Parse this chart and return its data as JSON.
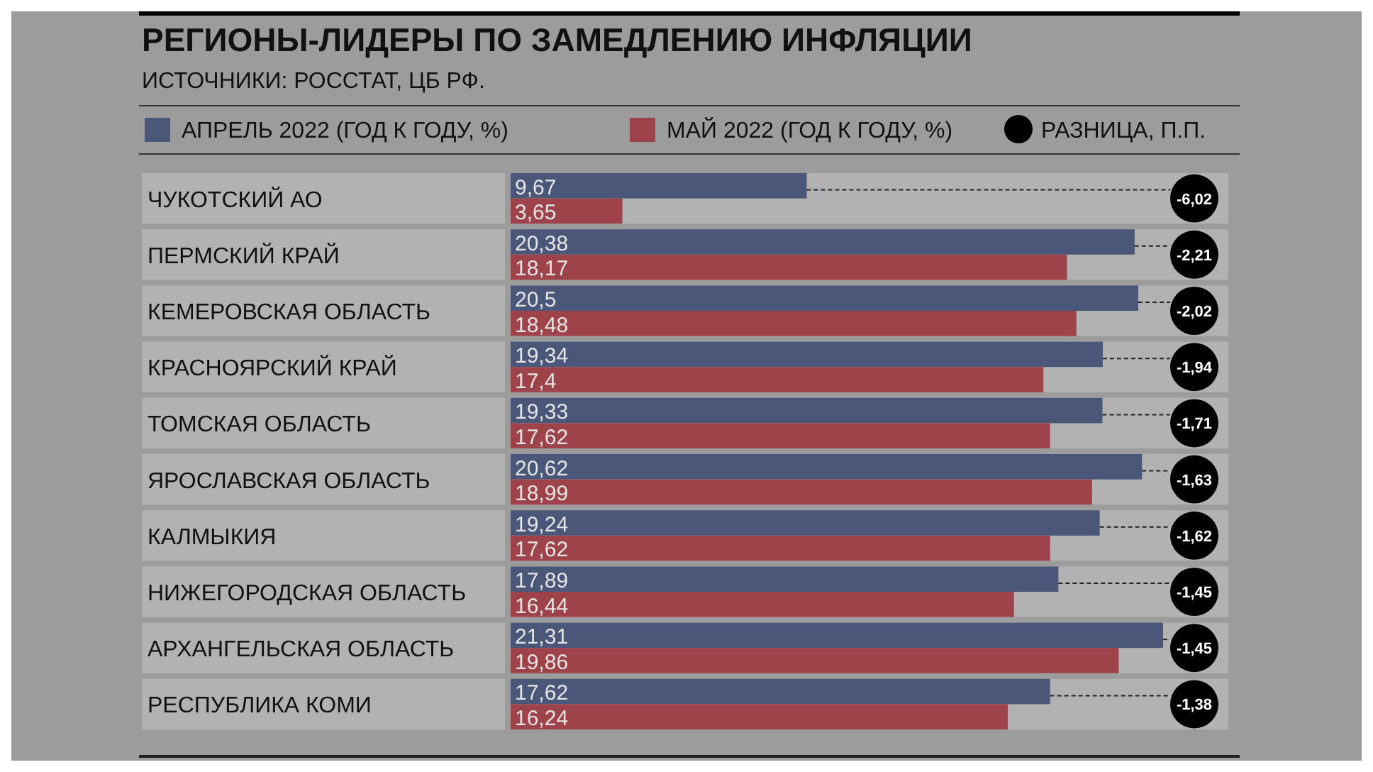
{
  "chart_data": {
    "type": "bar",
    "orientation": "horizontal",
    "title": "РЕГИОНЫ-ЛИДЕРЫ ПО ЗАМЕДЛЕНИЮ ИНФЛЯЦИИ",
    "subtitle": "ИСТОЧНИКИ: РОССТАТ, ЦБ РФ.",
    "legend": "top",
    "categories": [
      "ЧУКОТСКИЙ АО",
      "ПЕРМСКИЙ КРАЙ",
      "КЕМЕРОВСКАЯ ОБЛАСТЬ",
      "КРАСНОЯРСКИЙ КРАЙ",
      "ТОМСКАЯ ОБЛАСТЬ",
      "ЯРОСЛАВСКАЯ ОБЛАСТЬ",
      "КАЛМЫКИЯ",
      "НИЖЕГОРОДСКАЯ ОБЛАСТЬ",
      "АРХАНГЕЛЬСКАЯ ОБЛАСТЬ",
      "РЕСПУБЛИКА КОМИ"
    ],
    "series": [
      {
        "name": "АПРЕЛЬ 2022 (ГОД К ГОДУ, %)",
        "color": "#4b5779",
        "values": [
          9.67,
          20.38,
          20.5,
          19.34,
          19.33,
          20.62,
          19.24,
          17.89,
          21.31,
          17.62
        ],
        "value_labels": [
          "9,67",
          "20,38",
          "20,5",
          "19,34",
          "19,33",
          "20,62",
          "19,24",
          "17,89",
          "21,31",
          "17,62"
        ]
      },
      {
        "name": "МАЙ 2022 (ГОД К ГОДУ, %)",
        "color": "#9e434a",
        "values": [
          3.65,
          18.17,
          18.48,
          17.4,
          17.62,
          18.99,
          17.62,
          16.44,
          19.86,
          16.24
        ],
        "value_labels": [
          "3,65",
          "18,17",
          "18,48",
          "17,4",
          "17,62",
          "18,99",
          "17,62",
          "16,44",
          "19,86",
          "16,24"
        ]
      }
    ],
    "annotations": [
      "РАЗНИЦА, П.П.",
      "-6,02",
      "-2,21",
      "-2,02",
      "-1,94",
      "-1,71",
      "-1,63",
      "-1,62",
      "-1,45",
      "-1,45",
      "-1,38"
    ]
  }
}
